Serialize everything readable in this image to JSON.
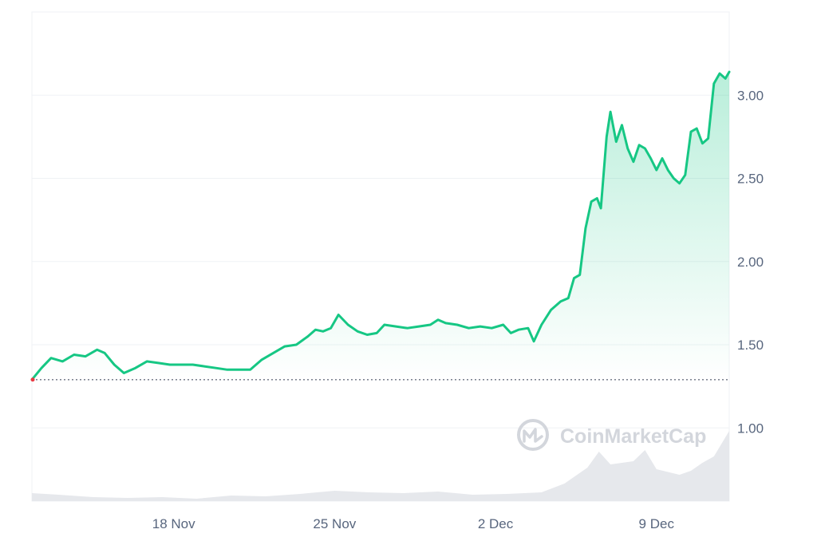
{
  "watermark": "CoinMarketCap",
  "colors": {
    "line": "#16c784",
    "grid": "#eff2f5",
    "baseline": "#6b7280",
    "volume": "#e6e8ec",
    "text": "#58667e"
  },
  "chart_data": {
    "type": "area",
    "x_axis": {
      "tick_labels": [
        "18 Nov",
        "25 Nov",
        "2 Dec",
        "9 Dec"
      ],
      "tick_dates": [
        "2024-11-18",
        "2024-11-25",
        "2024-12-02",
        "2024-12-09"
      ],
      "range": [
        "2024-11-11T20:00",
        "2024-12-12T04:00"
      ]
    },
    "y_axis": {
      "tick_labels": [
        "1.00",
        "1.50",
        "2.00",
        "2.50",
        "3.00"
      ],
      "ticks": [
        1.0,
        1.5,
        2.0,
        2.5,
        3.0
      ],
      "range": [
        0.56,
        3.5
      ],
      "position": "right"
    },
    "reference_line": {
      "value": 1.29,
      "style": "dotted"
    },
    "grid": true,
    "series": [
      {
        "values": [
          [
            "2024-11-11T20:00",
            1.29
          ],
          [
            "2024-11-12T06:00",
            1.36
          ],
          [
            "2024-11-12T16:00",
            1.42
          ],
          [
            "2024-11-13T04:00",
            1.4
          ],
          [
            "2024-11-13T16:00",
            1.44
          ],
          [
            "2024-11-14T04:00",
            1.43
          ],
          [
            "2024-11-14T16:00",
            1.47
          ],
          [
            "2024-11-15T00:00",
            1.45
          ],
          [
            "2024-11-15T10:00",
            1.38
          ],
          [
            "2024-11-15T20:00",
            1.33
          ],
          [
            "2024-11-16T08:00",
            1.36
          ],
          [
            "2024-11-16T20:00",
            1.4
          ],
          [
            "2024-11-17T08:00",
            1.39
          ],
          [
            "2024-11-17T20:00",
            1.38
          ],
          [
            "2024-11-18T08:00",
            1.38
          ],
          [
            "2024-11-18T20:00",
            1.38
          ],
          [
            "2024-11-19T08:00",
            1.37
          ],
          [
            "2024-11-19T20:00",
            1.36
          ],
          [
            "2024-11-20T08:00",
            1.35
          ],
          [
            "2024-11-20T20:00",
            1.35
          ],
          [
            "2024-11-21T08:00",
            1.35
          ],
          [
            "2024-11-21T20:00",
            1.41
          ],
          [
            "2024-11-22T08:00",
            1.45
          ],
          [
            "2024-11-22T20:00",
            1.49
          ],
          [
            "2024-11-23T08:00",
            1.5
          ],
          [
            "2024-11-23T20:00",
            1.55
          ],
          [
            "2024-11-24T04:00",
            1.59
          ],
          [
            "2024-11-24T12:00",
            1.58
          ],
          [
            "2024-11-24T20:00",
            1.6
          ],
          [
            "2024-11-25T04:00",
            1.68
          ],
          [
            "2024-11-25T14:00",
            1.62
          ],
          [
            "2024-11-26T00:00",
            1.58
          ],
          [
            "2024-11-26T10:00",
            1.56
          ],
          [
            "2024-11-26T20:00",
            1.57
          ],
          [
            "2024-11-27T04:00",
            1.62
          ],
          [
            "2024-11-27T16:00",
            1.61
          ],
          [
            "2024-11-28T04:00",
            1.6
          ],
          [
            "2024-11-28T16:00",
            1.61
          ],
          [
            "2024-11-29T04:00",
            1.62
          ],
          [
            "2024-11-29T12:00",
            1.65
          ],
          [
            "2024-11-29T20:00",
            1.63
          ],
          [
            "2024-11-30T08:00",
            1.62
          ],
          [
            "2024-11-30T20:00",
            1.6
          ],
          [
            "2024-12-01T08:00",
            1.61
          ],
          [
            "2024-12-01T20:00",
            1.6
          ],
          [
            "2024-12-02T08:00",
            1.62
          ],
          [
            "2024-12-02T16:00",
            1.57
          ],
          [
            "2024-12-03T00:00",
            1.59
          ],
          [
            "2024-12-03T10:00",
            1.6
          ],
          [
            "2024-12-03T16:00",
            1.52
          ],
          [
            "2024-12-04T00:00",
            1.62
          ],
          [
            "2024-12-04T10:00",
            1.71
          ],
          [
            "2024-12-04T20:00",
            1.76
          ],
          [
            "2024-12-05T04:00",
            1.78
          ],
          [
            "2024-12-05T10:00",
            1.9
          ],
          [
            "2024-12-05T16:00",
            1.92
          ],
          [
            "2024-12-05T22:00",
            2.2
          ],
          [
            "2024-12-06T04:00",
            2.36
          ],
          [
            "2024-12-06T10:00",
            2.38
          ],
          [
            "2024-12-06T14:00",
            2.32
          ],
          [
            "2024-12-06T20:00",
            2.75
          ],
          [
            "2024-12-07T00:00",
            2.9
          ],
          [
            "2024-12-07T06:00",
            2.72
          ],
          [
            "2024-12-07T12:00",
            2.82
          ],
          [
            "2024-12-07T18:00",
            2.68
          ],
          [
            "2024-12-08T00:00",
            2.6
          ],
          [
            "2024-12-08T06:00",
            2.7
          ],
          [
            "2024-12-08T12:00",
            2.68
          ],
          [
            "2024-12-08T18:00",
            2.62
          ],
          [
            "2024-12-09T00:00",
            2.55
          ],
          [
            "2024-12-09T06:00",
            2.62
          ],
          [
            "2024-12-09T12:00",
            2.55
          ],
          [
            "2024-12-09T18:00",
            2.5
          ],
          [
            "2024-12-10T00:00",
            2.47
          ],
          [
            "2024-12-10T06:00",
            2.52
          ],
          [
            "2024-12-10T12:00",
            2.78
          ],
          [
            "2024-12-10T18:00",
            2.8
          ],
          [
            "2024-12-11T00:00",
            2.71
          ],
          [
            "2024-12-11T06:00",
            2.74
          ],
          [
            "2024-12-11T12:00",
            3.07
          ],
          [
            "2024-12-11T18:00",
            3.13
          ],
          [
            "2024-12-12T00:00",
            3.1
          ],
          [
            "2024-12-12T04:00",
            3.14
          ]
        ]
      }
    ],
    "volume": [
      [
        "2024-11-11T20:00",
        0.1
      ],
      [
        "2024-11-13T00:00",
        0.08
      ],
      [
        "2024-11-14T12:00",
        0.05
      ],
      [
        "2024-11-16T00:00",
        0.04
      ],
      [
        "2024-11-17T12:00",
        0.05
      ],
      [
        "2024-11-19T00:00",
        0.03
      ],
      [
        "2024-11-20T12:00",
        0.07
      ],
      [
        "2024-11-22T00:00",
        0.06
      ],
      [
        "2024-11-23T12:00",
        0.09
      ],
      [
        "2024-11-25T00:00",
        0.13
      ],
      [
        "2024-11-26T12:00",
        0.11
      ],
      [
        "2024-11-28T00:00",
        0.1
      ],
      [
        "2024-11-29T12:00",
        0.12
      ],
      [
        "2024-12-01T00:00",
        0.08
      ],
      [
        "2024-12-02T12:00",
        0.09
      ],
      [
        "2024-12-04T00:00",
        0.11
      ],
      [
        "2024-12-05T00:00",
        0.22
      ],
      [
        "2024-12-06T00:00",
        0.42
      ],
      [
        "2024-12-06T12:00",
        0.62
      ],
      [
        "2024-12-07T00:00",
        0.46
      ],
      [
        "2024-12-08T00:00",
        0.5
      ],
      [
        "2024-12-08T12:00",
        0.64
      ],
      [
        "2024-12-09T00:00",
        0.4
      ],
      [
        "2024-12-10T00:00",
        0.33
      ],
      [
        "2024-12-10T12:00",
        0.38
      ],
      [
        "2024-12-11T00:00",
        0.48
      ],
      [
        "2024-12-11T12:00",
        0.56
      ],
      [
        "2024-12-12T04:00",
        0.88
      ]
    ]
  }
}
